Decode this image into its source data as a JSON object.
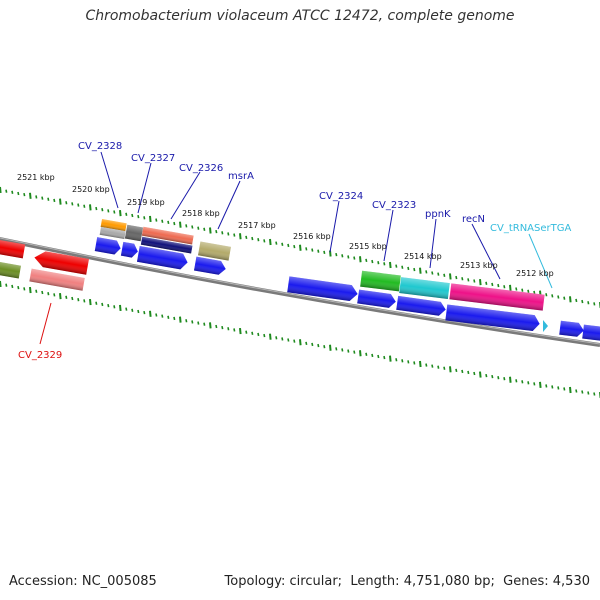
{
  "title": "Chromobacterium violaceum ATCC 12472, complete genome",
  "footer": {
    "accession_label": "Accession:",
    "accession": "NC_005085",
    "topology_label": "Topology:",
    "topology": "circular",
    "length_label": "Length:",
    "length": "4,751,080 bp",
    "genes_label": "Genes:",
    "genes": "4,530"
  },
  "colors": {
    "backbone": "#7a7a7a",
    "ruler": "#1e8a1e",
    "gene_label": "#1a1aaa",
    "cds_default": "#1a1aee"
  },
  "ruler_labels": [
    "2521 kbp",
    "2520 kbp",
    "2519 kbp",
    "2518 kbp",
    "2517 kbp",
    "2516 kbp",
    "2515 kbp",
    "2514 kbp",
    "2513 kbp",
    "2512 kbp"
  ],
  "gene_labels": [
    {
      "text": "CV_2328",
      "color": "#1a1aaa"
    },
    {
      "text": "CV_2327",
      "color": "#1a1aaa"
    },
    {
      "text": "CV_2326",
      "color": "#1a1aaa"
    },
    {
      "text": "msrA",
      "color": "#1a1aaa"
    },
    {
      "text": "CV_2324",
      "color": "#1a1aaa"
    },
    {
      "text": "CV_2323",
      "color": "#1a1aaa"
    },
    {
      "text": "ppnK",
      "color": "#1a1aaa"
    },
    {
      "text": "recN",
      "color": "#1a1aaa"
    },
    {
      "text": "CV_tRNASerTGA",
      "color": "#33bbdd"
    },
    {
      "text": "CV_2329",
      "color": "#dd1111"
    }
  ]
}
